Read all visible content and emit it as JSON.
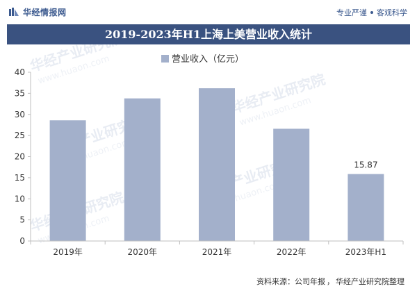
{
  "header": {
    "brand_name": "华经情报网",
    "tagline_left": "专业严谨",
    "tagline_right": "客观科学"
  },
  "title": "2019-2023年H1上海上美营业收入统计",
  "watermark": {
    "text": "华经产业研究院",
    "url_text": "www.huaon.com"
  },
  "source": {
    "label": "资料来源：",
    "items": [
      "公司年报",
      "华经产业研究院整理"
    ],
    "separator": "，"
  },
  "colors": {
    "bar": "#a3b0cb",
    "header_band": "#3a5280",
    "brand": "#3c5a8f",
    "axis": "#bfbfbf"
  },
  "chart_data": {
    "type": "bar",
    "categories": [
      "2019年",
      "2020年",
      "2021年",
      "2022年",
      "2023年H1"
    ],
    "series": [
      {
        "name": "营业收入（亿元）",
        "values": [
          28.6,
          33.8,
          36.2,
          26.6,
          15.87
        ]
      }
    ],
    "data_labels": [
      null,
      null,
      null,
      null,
      "15.87"
    ],
    "ylim": [
      0,
      40
    ],
    "yticks": [
      0,
      5,
      10,
      15,
      20,
      25,
      30,
      35,
      40
    ],
    "legend_position": "top-center",
    "grid": false
  }
}
